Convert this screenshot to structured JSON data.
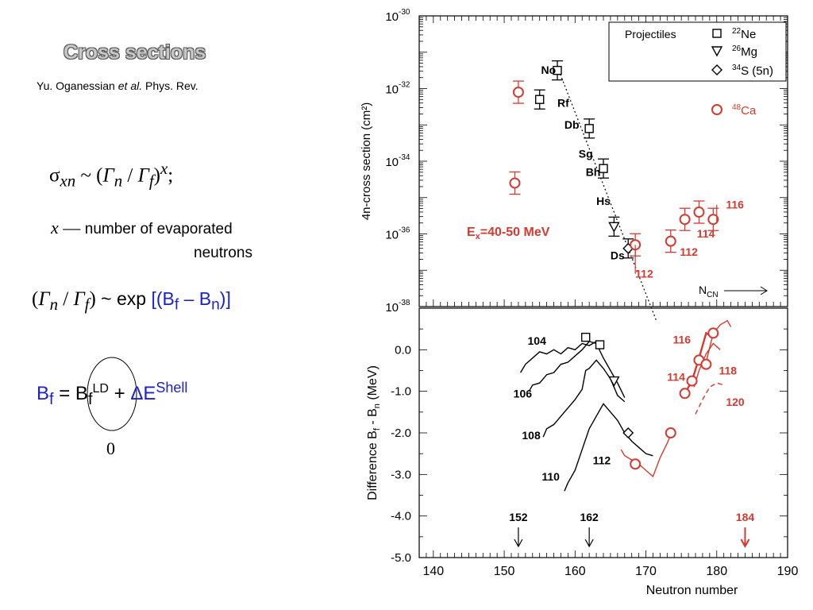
{
  "left": {
    "title": "Cross sections",
    "author": {
      "name": "Yu. Oganessian ",
      "etal": "et al.",
      "journal": " Phys. Rev."
    },
    "formula1": {
      "sigma": "σ",
      "sigma_sub": "xn",
      "tilde": " ~  (",
      "gn": "Γ",
      "gn_sub": "n",
      "slash": " / ",
      "gf": "Γ",
      "gf_sub": "f",
      "close": ")",
      "exp": "x",
      "end": ";"
    },
    "xdef": {
      "x": "x",
      "dash": " — ",
      "text1": "number of evaporated",
      "text2": "neutrons"
    },
    "formula2": {
      "open": "(",
      "gn": "Γ",
      "gn_sub": "n",
      "slash": " / ",
      "gf": "Γ",
      "gf_sub": "f",
      "close": ")",
      "mid": " ~ exp ",
      "br_open": "[(B",
      "bf_sub": "f",
      "minus": " – B",
      "bn_sub": "n",
      "br_close": ")]"
    },
    "formula3": {
      "bf": "B",
      "bf_sub": "f",
      "eq": " = B",
      "ld_sub": "f",
      "ld_sup": "LD",
      "plus": " + ",
      "de": "ΔE",
      "shell_sup": "Shell"
    },
    "zero": "0"
  },
  "colors": {
    "red": "#d63a2f",
    "blue": "#1a22c8",
    "black": "#000000"
  },
  "chart_data": [
    {
      "type": "scatter",
      "ylabel": "4n-cross section  (cm²)",
      "y_scale": "log",
      "ylim": [
        1e-38,
        1e-30
      ],
      "xlim": [
        138,
        190
      ],
      "y_ticks": [
        {
          "base": "10",
          "exp": "-30",
          "v": -30
        },
        {
          "base": "10",
          "exp": "-32",
          "v": -32
        },
        {
          "base": "10",
          "exp": "-34",
          "v": -34
        },
        {
          "base": "10",
          "exp": "-36",
          "v": -36
        },
        {
          "base": "10",
          "exp": "-38",
          "v": -38
        }
      ],
      "legend": {
        "title": "Projectiles",
        "entries": [
          {
            "symbol": "square",
            "label_sup": "22",
            "label": "Ne"
          },
          {
            "symbol": "triangle-down",
            "label_sup": "26",
            "label": "Mg"
          },
          {
            "symbol": "diamond",
            "label_sup": "34",
            "label": "S (5n)"
          }
        ],
        "red_entry": {
          "symbol": "circle",
          "label_sup": "48",
          "label": "Ca"
        }
      },
      "series": [
        {
          "name": "Ne",
          "marker": "square",
          "color": "#000000",
          "points": [
            [
              157.5,
              -31.5
            ],
            [
              155,
              -32.3
            ],
            [
              162,
              -33.1
            ],
            [
              164,
              -34.2
            ]
          ]
        },
        {
          "name": "Mg",
          "marker": "triangle-down",
          "color": "#000000",
          "points": [
            [
              165.5,
              -35.8
            ]
          ]
        },
        {
          "name": "S",
          "marker": "diamond",
          "color": "#000000",
          "points": [
            [
              167.5,
              -36.4
            ]
          ]
        },
        {
          "name": "Ca",
          "marker": "circle",
          "color": "#d63a2f",
          "points": [
            [
              152,
              -32.1
            ],
            [
              151.5,
              -34.6
            ],
            [
              168.5,
              -36.3
            ],
            [
              173.5,
              -36.2
            ],
            [
              175.5,
              -35.6
            ],
            [
              177.5,
              -35.4
            ],
            [
              179.5,
              -35.6
            ]
          ]
        }
      ],
      "fit_line": [
        [
          157.5,
          -31.4
        ],
        [
          171.5,
          -38.4
        ]
      ],
      "labels": [
        {
          "text": "No",
          "x": 155.2,
          "y": -31.6,
          "color": "#000000"
        },
        {
          "text": "Rf",
          "x": 157.5,
          "y": -32.5,
          "color": "#000000"
        },
        {
          "text": "Db",
          "x": 158.5,
          "y": -33.1,
          "color": "#000000"
        },
        {
          "text": "Sg",
          "x": 160.5,
          "y": -33.9,
          "color": "#000000"
        },
        {
          "text": "Bh",
          "x": 161.5,
          "y": -34.4,
          "color": "#000000"
        },
        {
          "text": "Hs",
          "x": 163,
          "y": -35.2,
          "color": "#000000"
        },
        {
          "text": "Ds",
          "x": 165,
          "y": -36.7,
          "color": "#000000"
        },
        {
          "text": "112",
          "x": 168.5,
          "y": -37.2,
          "color": "#d63a2f"
        },
        {
          "text": "112",
          "x": 174.8,
          "y": -36.6,
          "color": "#d63a2f"
        },
        {
          "text": "114",
          "x": 177.2,
          "y": -36.1,
          "color": "#d63a2f"
        },
        {
          "text": "116",
          "x": 181.3,
          "y": -35.3,
          "color": "#d63a2f"
        }
      ],
      "annotation": {
        "e": "E",
        "e_sub": "x",
        "text": "=40-50 MeV",
        "color": "#d63a2f"
      },
      "ncn": {
        "n": "N",
        "sub": "CN"
      }
    },
    {
      "type": "line",
      "xlabel": "Neutron number",
      "ylabel_parts": {
        "a": "Difference  B",
        "a_sub": "f",
        "b": " - B",
        "b_sub": "n",
        "c": "  (MeV)"
      },
      "xlim": [
        138,
        190
      ],
      "ylim": [
        -5.0,
        1.0
      ],
      "x_ticks": [
        "140",
        "150",
        "160",
        "170",
        "180",
        "190"
      ],
      "y_ticks": [
        "0.0",
        "-1.0",
        "-2.0",
        "-3.0",
        "-4.0",
        "-5.0"
      ],
      "series": [
        {
          "name": "104",
          "color": "#000000",
          "values": [
            [
              152.3,
              -0.55
            ],
            [
              153,
              -0.35
            ],
            [
              154,
              -0.2
            ],
            [
              155,
              -0.05
            ],
            [
              156,
              -0.1
            ],
            [
              157,
              0.0
            ],
            [
              158,
              -0.1
            ],
            [
              159,
              0.05
            ],
            [
              160,
              0.0
            ],
            [
              161,
              0.15
            ],
            [
              162,
              0.1
            ],
            [
              163,
              0.2
            ],
            [
              164,
              0.1
            ]
          ]
        },
        {
          "name": "106",
          "color": "#000000",
          "values": [
            [
              153.5,
              -1.0
            ],
            [
              154,
              -0.85
            ],
            [
              155,
              -0.8
            ],
            [
              156,
              -0.6
            ],
            [
              157,
              -0.55
            ],
            [
              158,
              -0.35
            ],
            [
              159,
              -0.3
            ],
            [
              160,
              -0.15
            ],
            [
              161,
              0.0
            ],
            [
              162,
              0.2
            ],
            [
              163,
              0.15
            ],
            [
              164,
              -0.2
            ],
            [
              165,
              -0.5
            ],
            [
              166,
              -0.8
            ],
            [
              167,
              -1.15
            ]
          ]
        },
        {
          "name": "108",
          "color": "#000000",
          "values": [
            [
              155.5,
              -2.1
            ],
            [
              156,
              -1.9
            ],
            [
              157,
              -1.8
            ],
            [
              158,
              -1.6
            ],
            [
              159,
              -1.4
            ],
            [
              160,
              -1.2
            ],
            [
              161,
              -0.95
            ],
            [
              161.5,
              -0.5
            ],
            [
              162,
              -0.45
            ],
            [
              163,
              -0.25
            ],
            [
              164,
              -0.45
            ],
            [
              165,
              -0.7
            ],
            [
              166,
              -1.1
            ],
            [
              167,
              -1.25
            ]
          ]
        },
        {
          "name": "110",
          "color": "#000000",
          "values": [
            [
              158.5,
              -3.4
            ],
            [
              159,
              -3.2
            ],
            [
              160,
              -2.9
            ],
            [
              161,
              -2.4
            ],
            [
              162,
              -1.9
            ],
            [
              163,
              -1.6
            ],
            [
              164,
              -1.3
            ],
            [
              165,
              -1.5
            ],
            [
              166,
              -1.7
            ],
            [
              167,
              -2.0
            ],
            [
              168,
              -2.2
            ],
            [
              169,
              -2.35
            ],
            [
              170,
              -2.5
            ],
            [
              171,
              -2.55
            ]
          ]
        },
        {
          "name": "112",
          "color": "#d63a2f",
          "values": [
            [
              166.5,
              -2.4
            ],
            [
              167,
              -2.55
            ],
            [
              168,
              -2.65
            ],
            [
              169,
              -2.75
            ],
            [
              170,
              -2.9
            ],
            [
              171,
              -3.05
            ],
            [
              172,
              -2.6
            ],
            [
              173,
              -2.25
            ],
            [
              173.5,
              -2.05
            ]
          ]
        },
        {
          "name": "114",
          "color": "#d63a2f",
          "values": [
            [
              175.5,
              -1.05
            ],
            [
              176.5,
              -0.75
            ],
            [
              177.5,
              -0.2
            ],
            [
              178.5,
              0.4
            ],
            [
              179,
              0.35
            ]
          ]
        },
        {
          "name": "116",
          "color": "#d63a2f",
          "values": [
            [
              178.5,
              -0.3
            ],
            [
              179.5,
              0.4
            ],
            [
              180.5,
              0.6
            ],
            [
              181.5,
              0.7
            ],
            [
              182,
              0.55
            ]
          ]
        },
        {
          "name": "118",
          "color": "#d63a2f",
          "values": [
            [
              176.8,
              -0.9
            ],
            [
              177.5,
              -0.5
            ],
            [
              178.5,
              -0.1
            ],
            [
              179.5,
              0.15
            ],
            [
              180.5,
              0.0
            ]
          ]
        },
        {
          "name": "120",
          "color": "#d63a2f",
          "dashed": true,
          "values": [
            [
              177,
              -1.55
            ],
            [
              178,
              -1.2
            ],
            [
              179,
              -0.9
            ],
            [
              180,
              -0.8
            ],
            [
              181,
              -0.85
            ]
          ]
        }
      ],
      "markers": [
        {
          "marker": "square",
          "color": "#000000",
          "x": 161.5,
          "y": 0.3
        },
        {
          "marker": "square",
          "color": "#000000",
          "x": 163.5,
          "y": 0.12
        },
        {
          "marker": "triangle-down",
          "color": "#000000",
          "x": 165.5,
          "y": -0.75
        },
        {
          "marker": "diamond",
          "color": "#000000",
          "x": 167.5,
          "y": -2.0
        },
        {
          "marker": "circle",
          "color": "#d63a2f",
          "x": 168.5,
          "y": -2.75
        },
        {
          "marker": "circle",
          "color": "#d63a2f",
          "x": 173.5,
          "y": -2.0
        },
        {
          "marker": "circle",
          "color": "#d63a2f",
          "x": 175.5,
          "y": -1.05
        },
        {
          "marker": "circle",
          "color": "#d63a2f",
          "x": 176.5,
          "y": -0.75
        },
        {
          "marker": "circle",
          "color": "#d63a2f",
          "x": 177.5,
          "y": -0.25
        },
        {
          "marker": "circle",
          "color": "#d63a2f",
          "x": 178.5,
          "y": -0.35
        },
        {
          "marker": "circle",
          "color": "#d63a2f",
          "x": 179.5,
          "y": 0.4
        }
      ],
      "labels": [
        {
          "text": "104",
          "x": 153.3,
          "y": 0.12,
          "color": "#000000"
        },
        {
          "text": "106",
          "x": 151.3,
          "y": -1.15,
          "color": "#000000"
        },
        {
          "text": "108",
          "x": 152.5,
          "y": -2.15,
          "color": "#000000"
        },
        {
          "text": "110",
          "x": 155.3,
          "y": -3.15,
          "color": "#000000"
        },
        {
          "text": "112",
          "x": 162.5,
          "y": -2.75,
          "color": "#000000"
        },
        {
          "text": "114",
          "x": 173,
          "y": -0.75,
          "color": "#d63a2f"
        },
        {
          "text": "116",
          "x": 173.8,
          "y": 0.15,
          "color": "#d63a2f"
        },
        {
          "text": "118",
          "x": 180.3,
          "y": -0.6,
          "color": "#d63a2f"
        },
        {
          "text": "120",
          "x": 181.3,
          "y": -1.35,
          "color": "#d63a2f"
        }
      ],
      "arrows": [
        {
          "text": "152",
          "x": 152,
          "color": "#000000"
        },
        {
          "text": "162",
          "x": 162,
          "color": "#000000"
        },
        {
          "text": "184",
          "x": 184,
          "color": "#d63a2f"
        }
      ]
    }
  ]
}
